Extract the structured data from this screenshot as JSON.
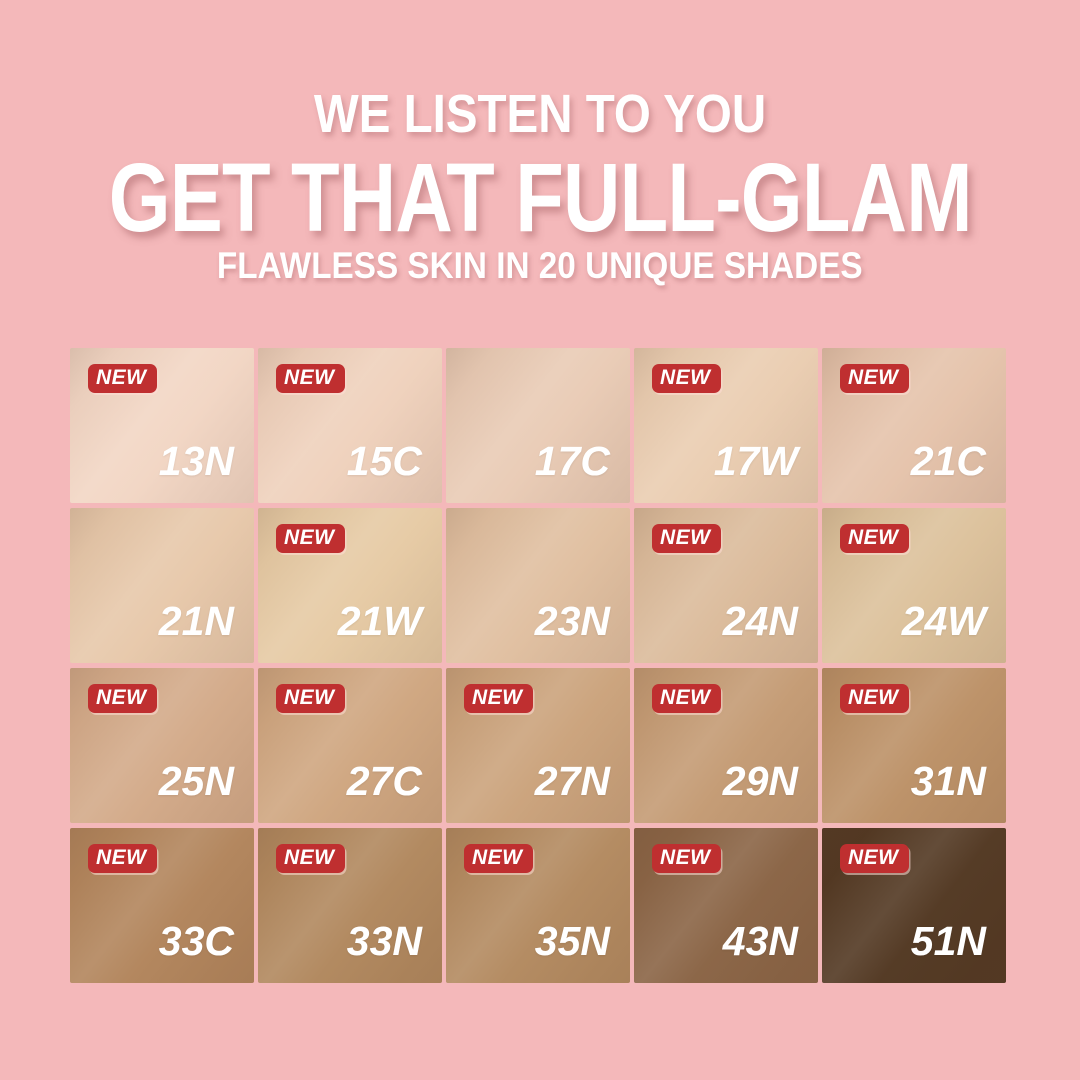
{
  "page": {
    "background": "#f4b8ba"
  },
  "header": {
    "line1": "WE LISTEN TO YOU",
    "line2": "GET THAT FULL-GLAM",
    "line3": "FLAWLESS SKIN IN 20 UNIQUE SHADES",
    "text_color": "#ffffff"
  },
  "badge": {
    "label": "NEW",
    "background": "#bf2f30",
    "text_color": "#ffffff"
  },
  "shades": {
    "columns": 5,
    "rows": 4,
    "items": [
      {
        "code": "13N",
        "color": "#f2d6c4",
        "new": true
      },
      {
        "code": "15C",
        "color": "#efd1bc",
        "new": true
      },
      {
        "code": "17C",
        "color": "#e9cbb5",
        "new": false
      },
      {
        "code": "17W",
        "color": "#eacdb1",
        "new": true
      },
      {
        "code": "21C",
        "color": "#e5c3ab",
        "new": true
      },
      {
        "code": "21N",
        "color": "#e7c8aa",
        "new": false
      },
      {
        "code": "21W",
        "color": "#e6caa4",
        "new": true
      },
      {
        "code": "23N",
        "color": "#e0bfa0",
        "new": false
      },
      {
        "code": "24N",
        "color": "#dbbb9b",
        "new": true
      },
      {
        "code": "24W",
        "color": "#dcc19b",
        "new": true
      },
      {
        "code": "25N",
        "color": "#d3aa89",
        "new": true
      },
      {
        "code": "27C",
        "color": "#cfa680",
        "new": true
      },
      {
        "code": "27N",
        "color": "#cba37c",
        "new": true
      },
      {
        "code": "29N",
        "color": "#c49b74",
        "new": true
      },
      {
        "code": "31N",
        "color": "#bc9167",
        "new": true
      },
      {
        "code": "33C",
        "color": "#b2855c",
        "new": true
      },
      {
        "code": "33N",
        "color": "#b1885e",
        "new": true
      },
      {
        "code": "35N",
        "color": "#b38a60",
        "new": true
      },
      {
        "code": "43N",
        "color": "#8a6445",
        "new": true
      },
      {
        "code": "51N",
        "color": "#523822",
        "new": true
      }
    ]
  }
}
